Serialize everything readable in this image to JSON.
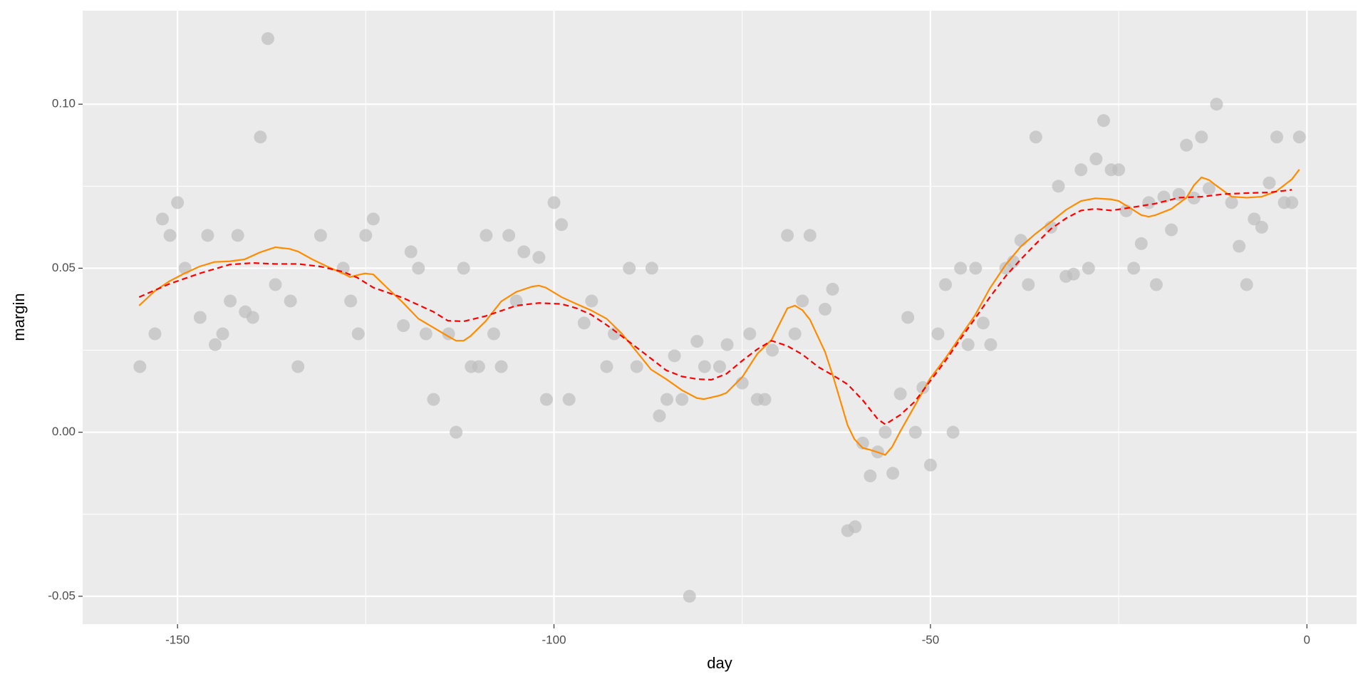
{
  "chart_data": {
    "type": "scatter",
    "x_label": "day",
    "y_label": "margin",
    "xlim": [
      -162.6,
      6.6
    ],
    "ylim": [
      -0.0585,
      0.1285
    ],
    "xticks": [
      -150,
      -100,
      -50,
      0
    ],
    "xminorticks": [
      -125,
      -75,
      -25
    ],
    "yticks": [
      {
        "value": -0.05,
        "label": "-0.05"
      },
      {
        "value": 0,
        "label": "0.00"
      },
      {
        "value": 0.05,
        "label": "0.05"
      },
      {
        "value": 0.1,
        "label": "0.10"
      }
    ],
    "yminorticks": [
      -0.025,
      0.025,
      0.075
    ],
    "grid": true,
    "series": [
      {
        "type": "scatter",
        "color": "#bdbdbd",
        "x": [
          -155,
          -153,
          -152,
          -151,
          -150,
          -149,
          -147,
          -146,
          -145,
          -144,
          -143,
          -142,
          -141,
          -140,
          -139,
          -138,
          -137,
          -135,
          -134,
          -131,
          -128,
          -127,
          -126,
          -125,
          -124,
          -120,
          -119,
          -118,
          -117,
          -116,
          -114,
          -113,
          -112,
          -111,
          -110,
          -109,
          -108,
          -107,
          -106,
          -105,
          -104,
          -102,
          -101,
          -100,
          -99,
          -98,
          -96,
          -95,
          -93,
          -92,
          -90,
          -89,
          -87,
          -86,
          -85,
          -84,
          -83,
          -82,
          -81,
          -80,
          -78,
          -77,
          -75,
          -74,
          -73,
          -72,
          -71,
          -69,
          -68,
          -67,
          -66,
          -64,
          -63,
          -61,
          -60,
          -59,
          -58,
          -57,
          -56,
          -55,
          -54,
          -53,
          -52,
          -51,
          -50,
          -49,
          -48,
          -47,
          -46,
          -45,
          -44,
          -43,
          -42,
          -40,
          -39,
          -38,
          -37,
          -36,
          -34,
          -33,
          -32,
          -31,
          -30,
          -29,
          -28,
          -27,
          -26,
          -25,
          -24,
          -23,
          -22,
          -21,
          -20,
          -19,
          -18,
          -17,
          -16,
          -15,
          -14,
          -13,
          -12,
          -10,
          -9,
          -8,
          -7,
          -6,
          -5,
          -4,
          -3,
          -2,
          -1
        ],
        "values": [
          0.02,
          0.03,
          0.065,
          0.06,
          0.07,
          0.05,
          0.035,
          0.06,
          0.0267,
          0.03,
          0.04,
          0.06,
          0.0367,
          0.035,
          0.09,
          0.12,
          0.045,
          0.04,
          0.02,
          0.06,
          0.05,
          0.04,
          0.03,
          0.06,
          0.065,
          0.0325,
          0.055,
          0.05,
          0.03,
          0.01,
          0.03,
          0.0,
          0.05,
          0.02,
          0.02,
          0.06,
          0.03,
          0.02,
          0.06,
          0.04,
          0.055,
          0.0533,
          0.01,
          0.07,
          0.0633,
          0.01,
          0.0333,
          0.04,
          0.02,
          0.03,
          0.05,
          0.02,
          0.05,
          0.005,
          0.01,
          0.0233,
          0.01,
          -0.05,
          0.0277,
          0.02,
          0.02,
          0.0267,
          0.015,
          0.03,
          0.01,
          0.01,
          0.025,
          0.06,
          0.03,
          0.04,
          0.06,
          0.0375,
          0.0436,
          -0.03,
          -0.0288,
          -0.0033,
          -0.0133,
          -0.006,
          0.0,
          -0.0125,
          0.0117,
          0.035,
          0.0,
          0.0136,
          -0.01,
          0.03,
          0.045,
          0.0,
          0.05,
          0.0267,
          0.05,
          0.0333,
          0.0267,
          0.05,
          0.052,
          0.0585,
          0.045,
          0.09,
          0.0625,
          0.075,
          0.0475,
          0.0482,
          0.08,
          0.05,
          0.0833,
          0.095,
          0.08,
          0.08,
          0.0675,
          0.05,
          0.0575,
          0.07,
          0.045,
          0.0717,
          0.0617,
          0.0725,
          0.0875,
          0.0714,
          0.09,
          0.0743,
          0.1,
          0.07,
          0.0567,
          0.045,
          0.065,
          0.0625,
          0.076,
          0.09,
          0.07,
          0.07,
          0.09
        ]
      },
      {
        "type": "line",
        "color": "#ff8c00",
        "dashed": false,
        "x": [
          -155.1,
          -153,
          -151.1,
          -149.1,
          -147.1,
          -145.1,
          -143.1,
          -141.1,
          -139.1,
          -137,
          -135.1,
          -134,
          -132.1,
          -130.1,
          -128,
          -127.1,
          -126.1,
          -125.1,
          -124,
          -122.1,
          -120.1,
          -118,
          -116,
          -114.1,
          -113,
          -112,
          -111.1,
          -109.1,
          -107,
          -105,
          -102.9,
          -102,
          -101.1,
          -99,
          -97,
          -95.1,
          -93,
          -91,
          -89,
          -87.1,
          -85.1,
          -83,
          -81,
          -80.1,
          -78,
          -77.1,
          -75,
          -73,
          -71.1,
          -69,
          -68,
          -67,
          -66,
          -64,
          -62.9,
          -61,
          -60.1,
          -59,
          -58.1,
          -57,
          -56,
          -55.1,
          -54,
          -52.1,
          -50.1,
          -48,
          -46,
          -44.1,
          -42.1,
          -40,
          -38,
          -36.1,
          -34,
          -32,
          -30,
          -28.1,
          -26,
          -25,
          -23.1,
          -22,
          -21,
          -20.1,
          -18,
          -16,
          -15,
          -14,
          -13,
          -12.1,
          -10,
          -8,
          -6,
          -4.1,
          -2,
          -1
        ],
        "values": [
          0.0386,
          0.0431,
          0.046,
          0.0484,
          0.0505,
          0.0519,
          0.0521,
          0.0527,
          0.0548,
          0.0564,
          0.0559,
          0.0551,
          0.0527,
          0.0505,
          0.0484,
          0.0473,
          0.0479,
          0.0484,
          0.0481,
          0.0439,
          0.0396,
          0.0346,
          0.0319,
          0.0293,
          0.0279,
          0.0279,
          0.0293,
          0.0338,
          0.0399,
          0.0428,
          0.0444,
          0.0447,
          0.0441,
          0.0412,
          0.0391,
          0.0372,
          0.0346,
          0.0301,
          0.0245,
          0.0191,
          0.0162,
          0.0128,
          0.0104,
          0.0101,
          0.0112,
          0.012,
          0.0168,
          0.0239,
          0.0282,
          0.0378,
          0.0386,
          0.0372,
          0.0343,
          0.0245,
          0.0168,
          0.0021,
          -0.0021,
          -0.0048,
          -0.0053,
          -0.0061,
          -0.0069,
          -0.0045,
          0.0003,
          0.008,
          0.0162,
          0.0226,
          0.0293,
          0.0356,
          0.0439,
          0.0511,
          0.0566,
          0.0604,
          0.0641,
          0.0678,
          0.0705,
          0.0713,
          0.071,
          0.0705,
          0.0678,
          0.0662,
          0.0657,
          0.0662,
          0.0681,
          0.0715,
          0.0753,
          0.0777,
          0.0769,
          0.0753,
          0.0718,
          0.0715,
          0.0718,
          0.0734,
          0.0771,
          0.0801
        ]
      },
      {
        "type": "line",
        "color": "#ff0000",
        "dashed": true,
        "x": [
          -155.1,
          -151.1,
          -147.1,
          -143.1,
          -140,
          -137,
          -134,
          -131,
          -128,
          -126.1,
          -124,
          -120.1,
          -116,
          -114.1,
          -112,
          -109.1,
          -105,
          -102,
          -99,
          -97,
          -95.1,
          -93,
          -91,
          -89,
          -85.1,
          -83,
          -81,
          -79.1,
          -77.1,
          -75,
          -73,
          -71.1,
          -69,
          -67,
          -64.9,
          -62.9,
          -61,
          -59,
          -57,
          -56,
          -54,
          -52.1,
          -50.1,
          -48,
          -46,
          -44.1,
          -42.1,
          -40,
          -38,
          -36.1,
          -34,
          -32,
          -30,
          -28.1,
          -26,
          -23.1,
          -20.1,
          -17,
          -14,
          -11,
          -8,
          -5,
          -2
        ],
        "values": [
          0.0412,
          0.0452,
          0.0484,
          0.0511,
          0.0516,
          0.0513,
          0.0513,
          0.0505,
          0.0489,
          0.0471,
          0.0441,
          0.041,
          0.0367,
          0.034,
          0.0338,
          0.0354,
          0.0386,
          0.0394,
          0.0391,
          0.0378,
          0.0359,
          0.0327,
          0.0293,
          0.0258,
          0.0189,
          0.017,
          0.0162,
          0.016,
          0.0178,
          0.0218,
          0.0253,
          0.0279,
          0.0263,
          0.0237,
          0.0199,
          0.0173,
          0.0146,
          0.0098,
          0.004,
          0.0024,
          0.0053,
          0.0093,
          0.0154,
          0.0218,
          0.0285,
          0.0346,
          0.0412,
          0.0476,
          0.0527,
          0.0572,
          0.062,
          0.0652,
          0.0676,
          0.0681,
          0.0676,
          0.0686,
          0.0697,
          0.0715,
          0.0718,
          0.0726,
          0.0729,
          0.0731,
          0.0739
        ]
      }
    ]
  }
}
